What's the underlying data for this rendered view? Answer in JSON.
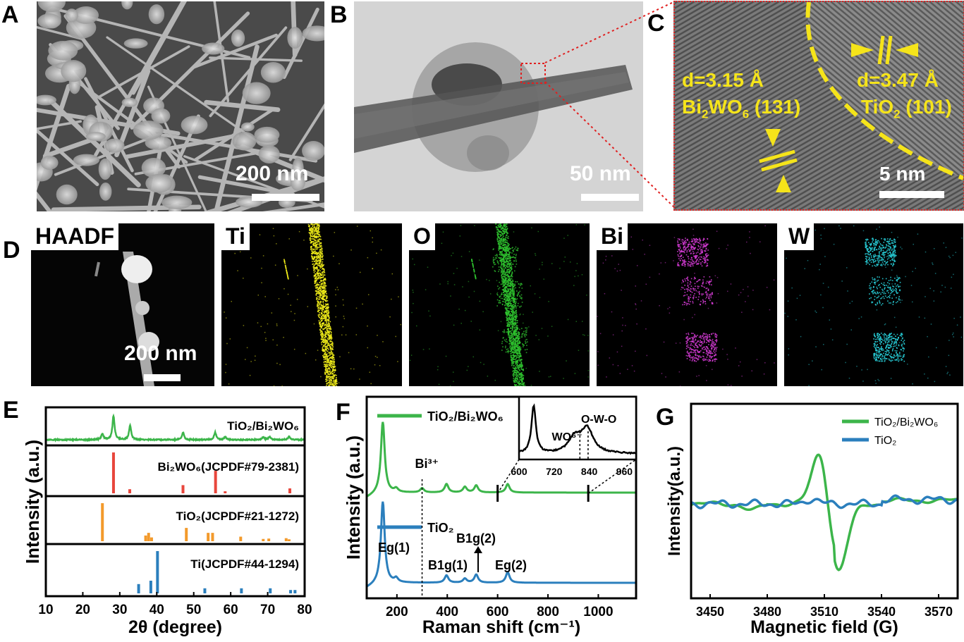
{
  "panels": {
    "A": {
      "label": "A",
      "scale": "200 nm"
    },
    "B": {
      "label": "B",
      "scale": "50 nm"
    },
    "C": {
      "label": "C",
      "scale": "5 nm",
      "d1": "d=3.15 Å",
      "phase1_prefix": "Bi",
      "phase1_sub1": "2",
      "phase1_mid": "WO",
      "phase1_sub2": "6",
      "phase1_hkl": " (131)",
      "d2": "d=3.47 Å",
      "phase2_prefix": "TiO",
      "phase2_sub": "2",
      "phase2_hkl": " (101)"
    },
    "D": {
      "label": "D",
      "scale": "200 nm",
      "maps": [
        {
          "name": "HAADF",
          "color": "#ffffff"
        },
        {
          "name": "Ti",
          "color": "#f2ee1a"
        },
        {
          "name": "O",
          "color": "#2fc42f"
        },
        {
          "name": "Bi",
          "color": "#d23ad2"
        },
        {
          "name": "W",
          "color": "#28d2dc"
        }
      ]
    },
    "E": {
      "label": "E"
    },
    "F": {
      "label": "F"
    },
    "G": {
      "label": "G"
    }
  },
  "chart_data": [
    {
      "type": "line",
      "panel": "E",
      "xlabel": "2θ (degree)",
      "ylabel": "Intensity (a.u.)",
      "xlim": [
        10,
        80
      ],
      "xticks": [
        10,
        20,
        30,
        40,
        50,
        60,
        70,
        80
      ],
      "series": [
        {
          "name": "TiO2/Bi2WO6",
          "color": "#3cb54a",
          "peaks": [
            [
              25.3,
              0.25
            ],
            [
              28.3,
              1.0
            ],
            [
              32.8,
              0.6
            ],
            [
              47.1,
              0.3
            ],
            [
              55.8,
              0.3
            ],
            [
              58.5,
              0.12
            ],
            [
              68.8,
              0.1
            ],
            [
              70.5,
              0.12
            ],
            [
              75.8,
              0.12
            ]
          ]
        },
        {
          "name": "Bi2WO6(JCPDF#79-2381)",
          "color": "#e8463c",
          "sticks": [
            [
              28.3,
              1.0
            ],
            [
              32.7,
              0.1
            ],
            [
              47.1,
              0.2
            ],
            [
              55.9,
              0.55
            ],
            [
              58.5,
              0.05
            ],
            [
              76.0,
              0.12
            ]
          ]
        },
        {
          "name": "TiO2(JCPDF#21-1272)",
          "color": "#f39a2b",
          "sticks": [
            [
              25.3,
              1.0
            ],
            [
              37.0,
              0.15
            ],
            [
              37.8,
              0.22
            ],
            [
              38.6,
              0.1
            ],
            [
              48.0,
              0.35
            ],
            [
              53.9,
              0.22
            ],
            [
              55.1,
              0.22
            ],
            [
              62.7,
              0.12
            ],
            [
              68.8,
              0.06
            ],
            [
              70.3,
              0.07
            ],
            [
              75.0,
              0.08
            ],
            [
              75.8,
              0.05
            ]
          ]
        },
        {
          "name": "Ti(JCPDF#44-1294)",
          "color": "#2b7fbd",
          "sticks": [
            [
              35.1,
              0.22
            ],
            [
              38.4,
              0.3
            ],
            [
              40.2,
              1.0
            ],
            [
              53.0,
              0.12
            ],
            [
              62.9,
              0.12
            ],
            [
              70.7,
              0.12
            ],
            [
              76.2,
              0.08
            ],
            [
              77.4,
              0.08
            ]
          ]
        }
      ]
    },
    {
      "type": "line",
      "panel": "F",
      "xlabel": "Raman shift (cm⁻¹)",
      "ylabel": "Intensity (a.u.)",
      "xlim": [
        80,
        1150
      ],
      "xticks": [
        200,
        400,
        600,
        800,
        1000
      ],
      "series": [
        {
          "name": "TiO2/Bi2WO6",
          "color": "#3cb54a",
          "peaks": [
            [
              144,
              1.0
            ],
            [
              197,
              0.05
            ],
            [
              300,
              0.06
            ],
            [
              397,
              0.12
            ],
            [
              470,
              0.08
            ],
            [
              515,
              0.1
            ],
            [
              640,
              0.12
            ]
          ]
        },
        {
          "name": "TiO2",
          "color": "#2b7fbd",
          "peaks": [
            [
              144,
              1.0
            ],
            [
              197,
              0.05
            ],
            [
              397,
              0.09
            ],
            [
              470,
              0.05
            ],
            [
              515,
              0.1
            ],
            [
              640,
              0.13
            ]
          ]
        }
      ],
      "annotations": [
        "Bi3+",
        "Eg(1)",
        "B1g(1)",
        "B1g(2)",
        "Eg(2)"
      ],
      "inset": {
        "xlim": [
          600,
          1000
        ],
        "xticks": [
          600,
          720,
          840,
          960
        ],
        "labels": [
          "WO6-",
          "O-W-O"
        ],
        "peaks": [
          [
            650,
            1.0
          ],
          [
            790,
            0.35
          ],
          [
            833,
            0.5
          ]
        ]
      }
    },
    {
      "type": "line",
      "panel": "G",
      "xlabel": "Magnetic field (G)",
      "ylabel": "Intensity(a.u.)",
      "xlim": [
        3440,
        3580
      ],
      "xticks": [
        3450,
        3480,
        3510,
        3540,
        3570
      ],
      "series": [
        {
          "name": "TiO2/Bi2WO6",
          "color": "#3cb54a"
        },
        {
          "name": "TiO2",
          "color": "#2b7fbd"
        }
      ]
    }
  ]
}
